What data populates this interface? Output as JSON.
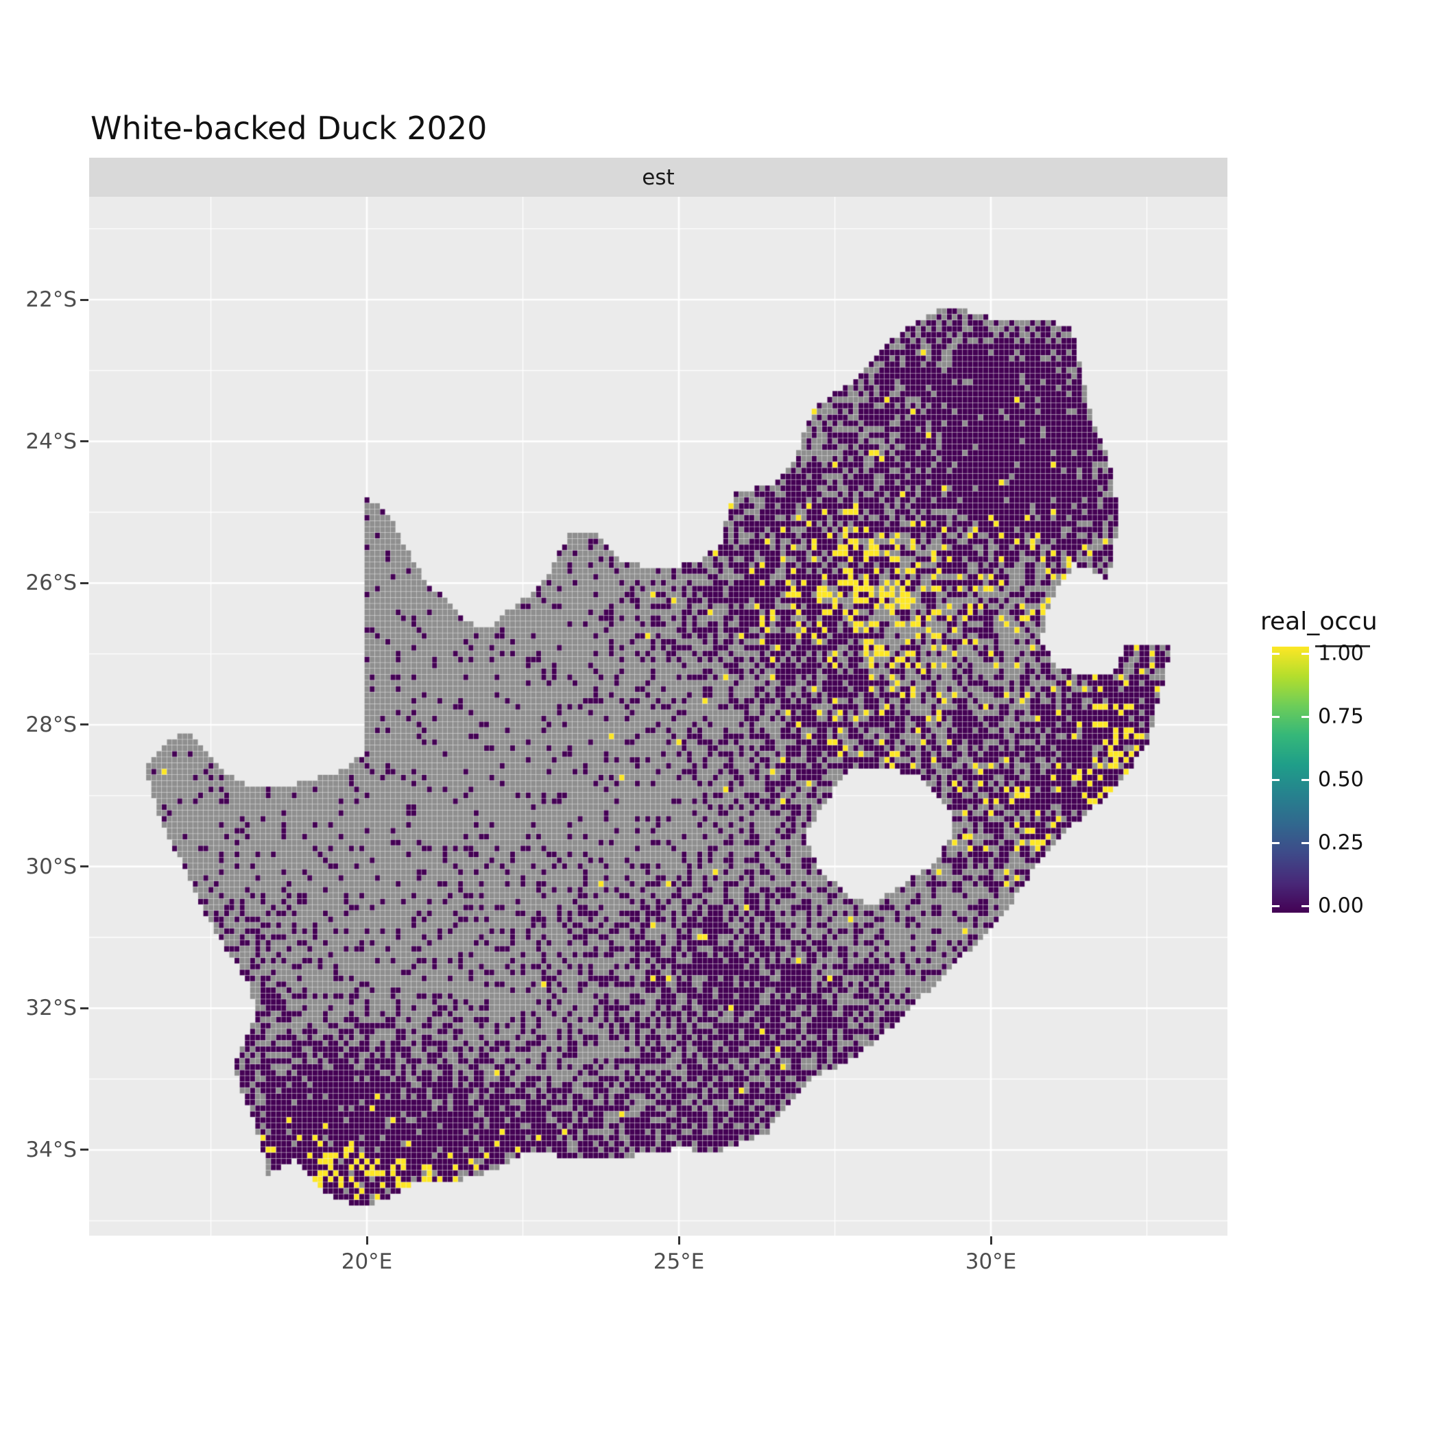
{
  "title": "White-backed Duck 2020",
  "facet": {
    "label": "est"
  },
  "axes": {
    "x": {
      "ticks": [
        {
          "label": "20°E",
          "lon": 20
        },
        {
          "label": "25°E",
          "lon": 25
        },
        {
          "label": "30°E",
          "lon": 30
        }
      ]
    },
    "y": {
      "ticks": [
        {
          "label": "22°S",
          "lat": 22
        },
        {
          "label": "24°S",
          "lat": 24
        },
        {
          "label": "26°S",
          "lat": 26
        },
        {
          "label": "28°S",
          "lat": 28
        },
        {
          "label": "30°S",
          "lat": 30
        },
        {
          "label": "32°S",
          "lat": 32
        },
        {
          "label": "34°S",
          "lat": 34
        }
      ]
    }
  },
  "legend": {
    "title": "real_occu",
    "ticks": [
      {
        "label": "1.00",
        "value": 1.0
      },
      {
        "label": "0.75",
        "value": 0.75
      },
      {
        "label": "0.50",
        "value": 0.5
      },
      {
        "label": "0.25",
        "value": 0.25
      },
      {
        "label": "0.00",
        "value": 0.0
      }
    ],
    "viridis_stops": [
      "#440154",
      "#482878",
      "#3e4a89",
      "#31688e",
      "#26828e",
      "#1f9e89",
      "#35b779",
      "#6dcd59",
      "#b4de2c",
      "#fde725"
    ]
  },
  "colors": {
    "page_bg": "#ffffff",
    "panel_bg": "#ebebeb",
    "strip_bg": "#d9d9d9",
    "gridline": "#ffffff",
    "land_na": "#8f8f8f",
    "occ_zero": "#440154",
    "occ_one": "#fde725",
    "axis_text": "#4d4d4d"
  },
  "chart_data": {
    "type": "heatmap",
    "title": "White-backed Duck 2020",
    "facet_label": "est",
    "legend_title": "real_occu",
    "value_range": [
      0.0,
      1.0
    ],
    "observed_values": {
      "0.00": "#440154",
      "1.00": "#fde725",
      "no_data": "#8f8f8f"
    },
    "x_ticks": [
      "20°E",
      "25°E",
      "30°E"
    ],
    "y_ticks": [
      "22°S",
      "24°S",
      "26°S",
      "28°S",
      "30°S",
      "32°S",
      "34°S"
    ],
    "region": "South Africa pentad grid"
  },
  "map": {
    "cell_deg": 0.08333,
    "seed": 42,
    "base_purple": 0.11,
    "base_yellow": 0.006,
    "outline": [
      [
        16.45,
        28.63
      ],
      [
        16.8,
        28.25
      ],
      [
        17.1,
        28.1
      ],
      [
        17.4,
        28.35
      ],
      [
        17.65,
        28.65
      ],
      [
        18.15,
        28.9
      ],
      [
        18.8,
        28.85
      ],
      [
        19.45,
        28.7
      ],
      [
        19.98,
        28.42
      ],
      [
        19.99,
        27.3
      ],
      [
        19.99,
        24.77
      ],
      [
        20.35,
        25.05
      ],
      [
        20.6,
        25.45
      ],
      [
        20.85,
        25.85
      ],
      [
        21.1,
        26.1
      ],
      [
        21.65,
        26.55
      ],
      [
        21.9,
        26.67
      ],
      [
        22.55,
        26.2
      ],
      [
        22.85,
        25.95
      ],
      [
        23.25,
        25.32
      ],
      [
        23.65,
        25.3
      ],
      [
        24.15,
        25.72
      ],
      [
        24.7,
        25.8
      ],
      [
        25.3,
        25.7
      ],
      [
        25.65,
        25.48
      ],
      [
        25.9,
        24.72
      ],
      [
        26.45,
        24.63
      ],
      [
        26.85,
        24.3
      ],
      [
        27.15,
        23.55
      ],
      [
        27.95,
        23.05
      ],
      [
        28.35,
        22.6
      ],
      [
        29.05,
        22.18
      ],
      [
        29.45,
        22.13
      ],
      [
        29.95,
        22.25
      ],
      [
        30.5,
        22.3
      ],
      [
        31.3,
        22.35
      ],
      [
        31.6,
        23.6
      ],
      [
        31.95,
        24.4
      ],
      [
        32.05,
        25.1
      ],
      [
        31.9,
        25.95
      ],
      [
        31.35,
        25.72
      ],
      [
        30.95,
        26.25
      ],
      [
        30.8,
        26.85
      ],
      [
        31.1,
        27.2
      ],
      [
        31.5,
        27.3
      ],
      [
        31.97,
        27.32
      ],
      [
        32.15,
        26.86
      ],
      [
        32.9,
        26.86
      ],
      [
        32.55,
        28.2
      ],
      [
        32.05,
        28.85
      ],
      [
        31.35,
        29.4
      ],
      [
        30.65,
        30.1
      ],
      [
        30.15,
        30.75
      ],
      [
        29.4,
        31.4
      ],
      [
        28.55,
        32.15
      ],
      [
        27.9,
        32.65
      ],
      [
        27.05,
        33.05
      ],
      [
        26.4,
        33.78
      ],
      [
        25.65,
        34.03
      ],
      [
        25.0,
        33.98
      ],
      [
        24.15,
        34.1
      ],
      [
        23.35,
        34.1
      ],
      [
        22.55,
        34.05
      ],
      [
        21.75,
        34.4
      ],
      [
        20.75,
        34.48
      ],
      [
        20.0,
        34.82
      ],
      [
        19.3,
        34.62
      ],
      [
        18.85,
        34.15
      ],
      [
        18.42,
        34.35
      ],
      [
        18.3,
        33.88
      ],
      [
        17.85,
        32.8
      ],
      [
        18.25,
        32.05
      ],
      [
        18.1,
        31.65
      ],
      [
        17.55,
        30.9
      ],
      [
        17.0,
        29.9
      ],
      [
        16.7,
        29.35
      ]
    ],
    "lesotho_hole": [
      [
        27.0,
        29.6
      ],
      [
        27.35,
        29.1
      ],
      [
        27.75,
        28.6
      ],
      [
        28.35,
        28.6
      ],
      [
        28.9,
        28.75
      ],
      [
        29.35,
        29.25
      ],
      [
        29.4,
        29.55
      ],
      [
        29.1,
        29.95
      ],
      [
        28.6,
        30.25
      ],
      [
        28.1,
        30.55
      ],
      [
        27.75,
        30.42
      ],
      [
        27.3,
        30.1
      ]
    ],
    "purple_hotspots": [
      [
        27.2,
        25.7,
        1.6,
        1.2,
        0.75
      ],
      [
        29.6,
        23.2,
        1.5,
        0.85,
        0.7
      ],
      [
        30.8,
        24.7,
        1.1,
        1.0,
        0.8
      ],
      [
        31.0,
        29.2,
        1.2,
        1.3,
        0.65
      ],
      [
        32.2,
        27.8,
        0.7,
        1.0,
        0.7
      ],
      [
        19.4,
        33.9,
        1.2,
        0.85,
        0.85
      ],
      [
        23.3,
        34.0,
        2.2,
        0.55,
        0.6
      ],
      [
        26.6,
        32.7,
        1.6,
        0.9,
        0.45
      ],
      [
        27.6,
        28.3,
        1.3,
        0.9,
        0.5
      ],
      [
        21.0,
        33.3,
        1.6,
        0.8,
        0.35
      ],
      [
        25.8,
        31.3,
        1.8,
        0.9,
        0.5
      ],
      [
        18.0,
        31.7,
        0.8,
        1.0,
        0.35
      ]
    ],
    "yellow_hotspots": [
      [
        28.1,
        26.1,
        0.85,
        0.7,
        0.4
      ],
      [
        28.9,
        26.9,
        0.5,
        0.5,
        0.22
      ],
      [
        30.3,
        29.4,
        0.5,
        0.7,
        0.18
      ],
      [
        32.3,
        28.3,
        0.5,
        0.8,
        0.28
      ],
      [
        19.0,
        34.3,
        0.7,
        0.35,
        0.3
      ],
      [
        20.8,
        34.3,
        1.3,
        0.25,
        0.18
      ],
      [
        27.8,
        28.0,
        0.6,
        0.5,
        0.12
      ],
      [
        31.0,
        26.5,
        0.8,
        0.8,
        0.15
      ],
      [
        24.5,
        28.2,
        0.4,
        0.4,
        0.08
      ]
    ]
  }
}
